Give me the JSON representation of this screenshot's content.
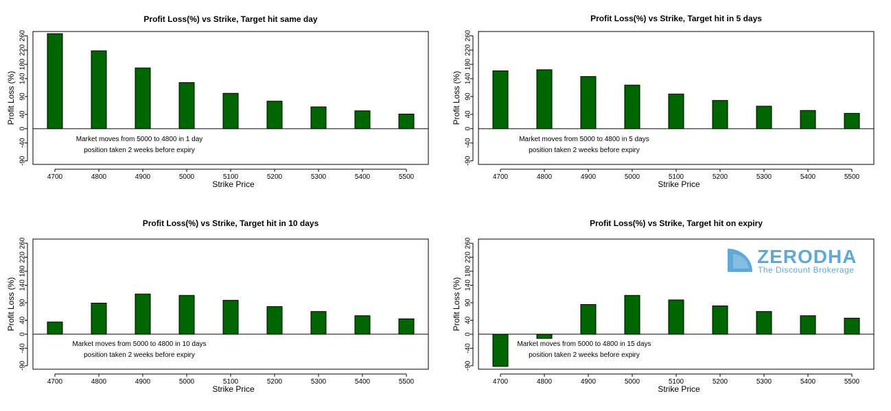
{
  "chart_data": [
    {
      "type": "bar",
      "title": "Profit Loss(%) vs Strike, Target hit same day",
      "xlabel": "Strike Price",
      "ylabel": "Profit Loss (%)",
      "categories": [
        "4700",
        "4800",
        "4900",
        "5000",
        "5100",
        "5200",
        "5300",
        "5400",
        "5500"
      ],
      "values": [
        266,
        218,
        170,
        129,
        99,
        77,
        61,
        50,
        41
      ],
      "yticks": [
        "260",
        "220",
        "180",
        "140",
        "90",
        "40",
        "0",
        "-40",
        "-90"
      ],
      "ylim": [
        -100,
        272
      ],
      "grid": false,
      "bar_color": "#006400",
      "annotations": [
        "Market moves from 5000 to 4800 in 1 day",
        "position taken 2 weeks before expiry"
      ]
    },
    {
      "type": "bar",
      "title": "Profit Loss(%) vs Strike, Target hit in 5 days",
      "xlabel": "Strike Price",
      "ylabel": "Profit Loss (%)",
      "categories": [
        "4700",
        "4800",
        "4900",
        "5000",
        "5100",
        "5200",
        "5300",
        "5400",
        "5500"
      ],
      "values": [
        162,
        165,
        146,
        122,
        97,
        79,
        63,
        51,
        43
      ],
      "yticks": [
        "260",
        "220",
        "180",
        "140",
        "90",
        "40",
        "0",
        "-40",
        "-90"
      ],
      "ylim": [
        -100,
        272
      ],
      "grid": false,
      "bar_color": "#006400",
      "annotations": [
        "Market moves from 5000 to 4800 in 5 days",
        "position taken 2 weeks before expiry"
      ]
    },
    {
      "type": "bar",
      "title": "Profit Loss(%) vs Strike, Target hit in 10 days",
      "xlabel": "Strike Price",
      "ylabel": "Profit Loss (%)",
      "categories": [
        "4700",
        "4800",
        "4900",
        "5000",
        "5100",
        "5200",
        "5300",
        "5400",
        "5500"
      ],
      "values": [
        35,
        89,
        115,
        111,
        97,
        79,
        65,
        53,
        44
      ],
      "yticks": [
        "260",
        "220",
        "180",
        "140",
        "90",
        "40",
        "0",
        "-40",
        "-90"
      ],
      "ylim": [
        -100,
        272
      ],
      "grid": false,
      "bar_color": "#006400",
      "annotations": [
        "Market moves from 5000 to 4800 in 10 days",
        "position taken 2 weeks before expiry"
      ]
    },
    {
      "type": "bar",
      "title": "Profit Loss(%) vs Strike, Target hit on expiry",
      "xlabel": "Strike Price",
      "ylabel": "Profit Loss (%)",
      "categories": [
        "4700",
        "4800",
        "4900",
        "5000",
        "5100",
        "5200",
        "5300",
        "5400",
        "5500"
      ],
      "values": [
        -92,
        -12,
        85,
        111,
        98,
        81,
        65,
        53,
        46
      ],
      "yticks": [
        "260",
        "220",
        "180",
        "140",
        "90",
        "40",
        "0",
        "-40",
        "-90"
      ],
      "ylim": [
        -100,
        272
      ],
      "grid": false,
      "bar_color": "#006400",
      "annotations": [
        "Market moves from 5000 to 4800 in 15 days",
        "position taken 2 weeks before expiry"
      ]
    }
  ],
  "logo": {
    "word": "ZERODHA",
    "tagline": "The Discount Brokerage",
    "color": "#5ea9d6",
    "icon": "zerodha-logo-icon"
  }
}
